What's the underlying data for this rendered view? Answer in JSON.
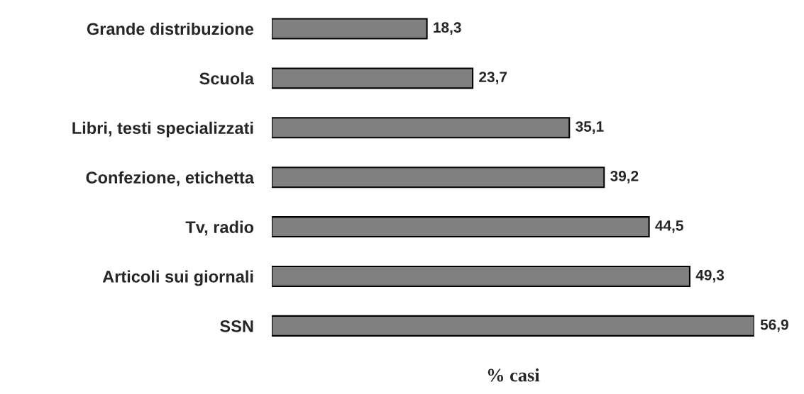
{
  "chart_data": {
    "type": "bar",
    "orientation": "horizontal",
    "xlabel": "% casi",
    "categories": [
      "Grande distribuzione",
      "Scuola",
      "Libri, testi specializzati",
      "Confezione, etichetta",
      "Tv, radio",
      "Articoli sui giornali",
      "SSN"
    ],
    "values": [
      18.3,
      23.7,
      35.1,
      39.2,
      44.5,
      49.3,
      56.9
    ],
    "value_labels": [
      "18,3",
      "23,7",
      "35,1",
      "39,2",
      "44,5",
      "49,3",
      "56,9"
    ],
    "color": "#808080",
    "tick_labels": "y",
    "grid": false,
    "legend": false
  }
}
